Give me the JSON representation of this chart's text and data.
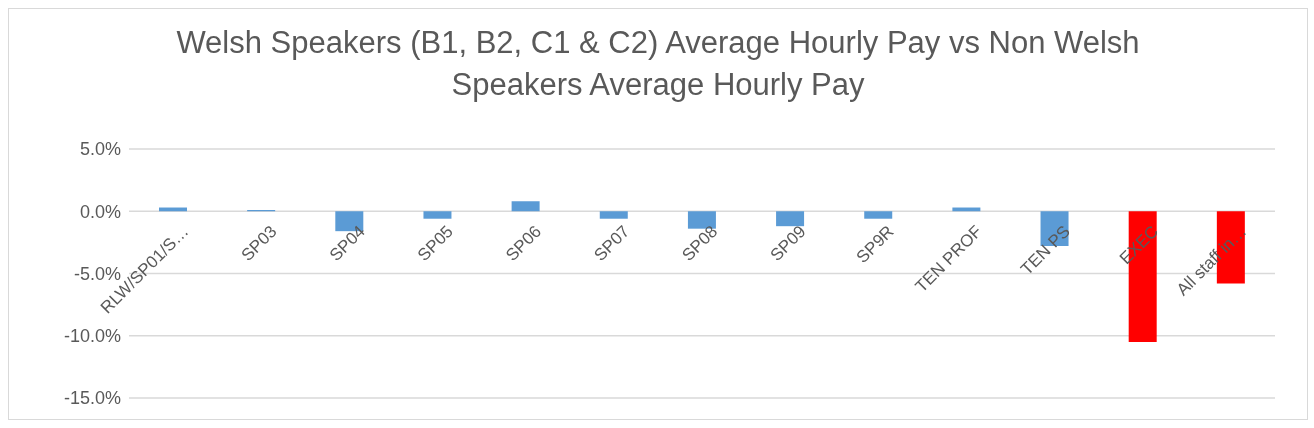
{
  "chart_data": {
    "type": "bar",
    "title": "Welsh Speakers (B1, B2, C1 & C2) Average Hourly Pay vs Non Welsh Speakers Average Hourly Pay",
    "categories": [
      "RLW/SP01/S…",
      "SP03",
      "SP04",
      "SP05",
      "SP06",
      "SP07",
      "SP08",
      "SP09",
      "SP9R",
      "TEN PROF",
      "TEN PS",
      "EXEC",
      "All staff in…"
    ],
    "values": [
      0.3,
      0.1,
      -1.6,
      -0.6,
      0.8,
      -0.6,
      -1.4,
      -1.2,
      -0.6,
      0.3,
      -2.8,
      -10.5,
      -5.8
    ],
    "colors": [
      "#5b9bd5",
      "#5b9bd5",
      "#5b9bd5",
      "#5b9bd5",
      "#5b9bd5",
      "#5b9bd5",
      "#5b9bd5",
      "#5b9bd5",
      "#5b9bd5",
      "#5b9bd5",
      "#5b9bd5",
      "#ff0000",
      "#ff0000"
    ],
    "ylim": [
      -15,
      5
    ],
    "yticks": [
      {
        "value": 5,
        "label": "5.0%"
      },
      {
        "value": 0,
        "label": "0.0%"
      },
      {
        "value": -5,
        "label": "-5.0%"
      },
      {
        "value": -10,
        "label": "-10.0%"
      },
      {
        "value": -15,
        "label": "-15.0%"
      }
    ],
    "grid": "y",
    "legend": false
  }
}
